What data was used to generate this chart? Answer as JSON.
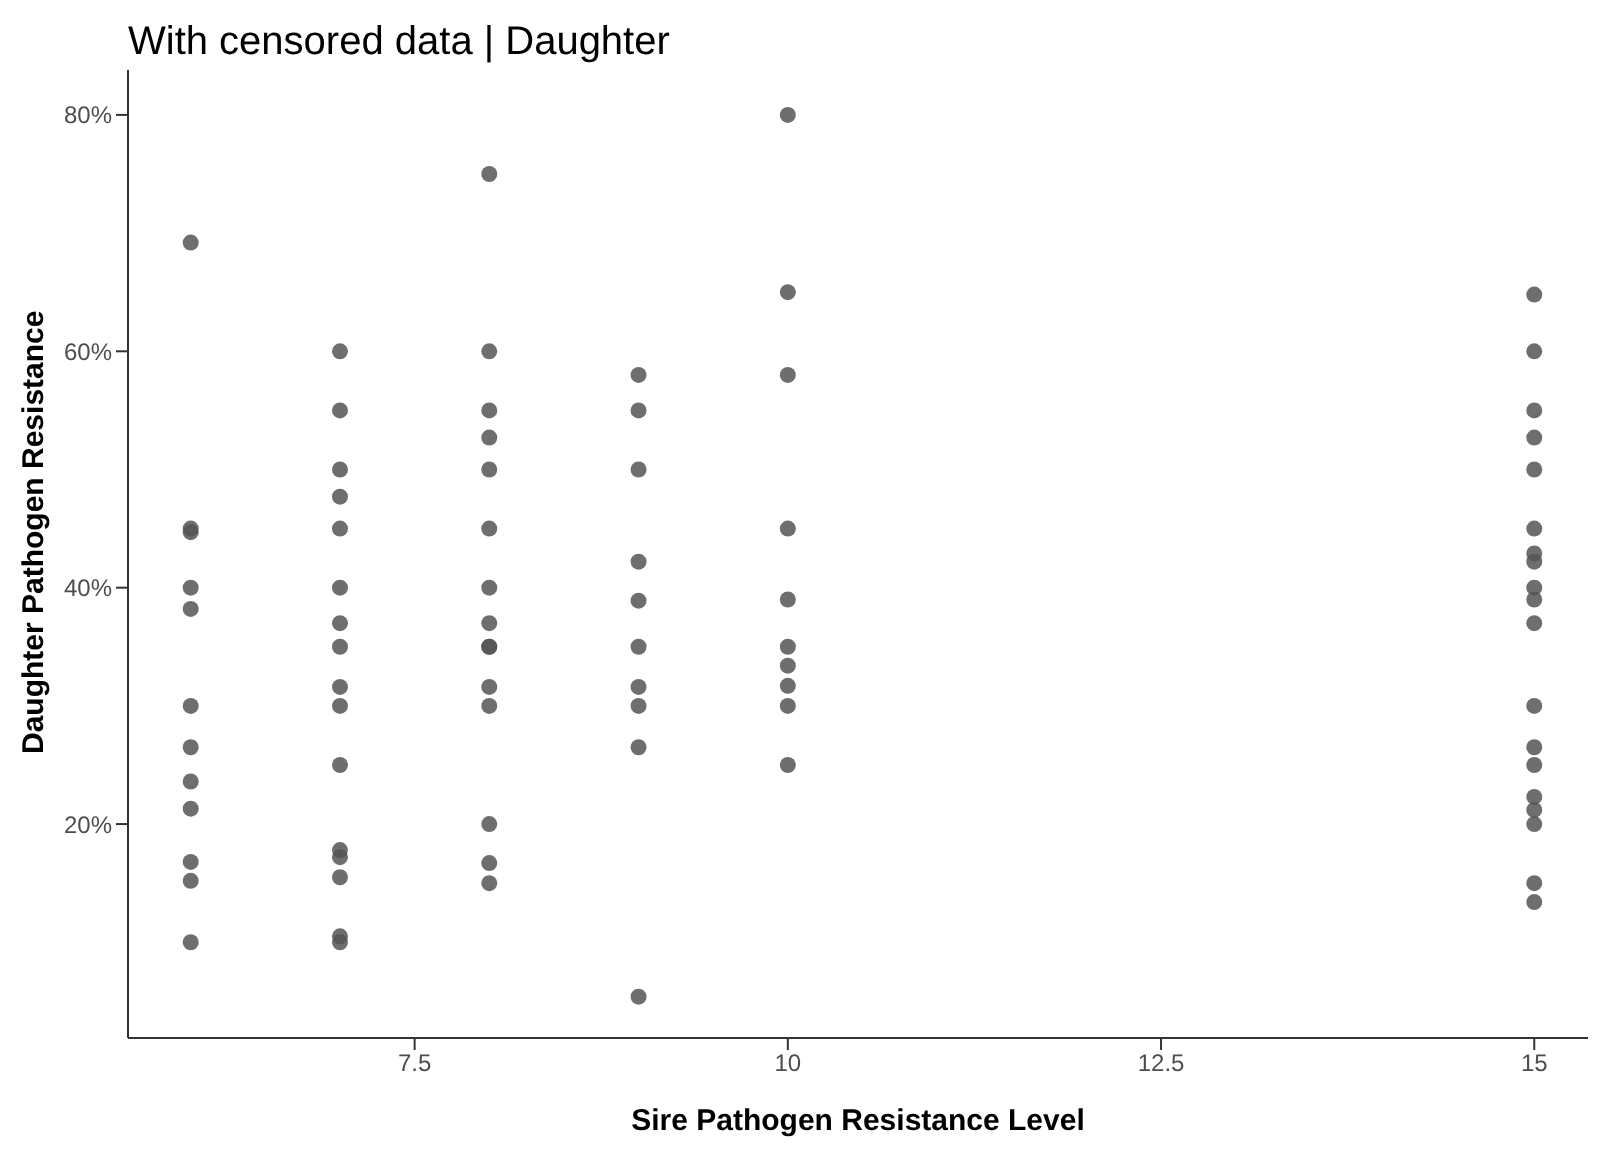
{
  "chart_data": {
    "type": "scatter",
    "title": "With censored data | Daughter",
    "xlabel": "Sire Pathogen Resistance Level",
    "ylabel": "Daughter Pathogen Resistance",
    "x": [
      6,
      6,
      6,
      6,
      6,
      6,
      6,
      6,
      6,
      6,
      6,
      6,
      7,
      7,
      7,
      7,
      7,
      7,
      7,
      7,
      7,
      7,
      7,
      7,
      7,
      7,
      7,
      7,
      8,
      8,
      8,
      8,
      8,
      8,
      8,
      8,
      8,
      8,
      8,
      8,
      8,
      8,
      8,
      9,
      9,
      9,
      9,
      9,
      9,
      9,
      9,
      9,
      9,
      10,
      10,
      10,
      10,
      10,
      10,
      10,
      10,
      10,
      10,
      15,
      15,
      15,
      15,
      15,
      15,
      15,
      15,
      15,
      15,
      15,
      15,
      15,
      15,
      15,
      15,
      15,
      15,
      15
    ],
    "values": [
      69.2,
      45,
      44.7,
      40,
      38.2,
      30,
      26.5,
      23.6,
      21.3,
      16.8,
      15.2,
      10,
      60,
      55,
      50,
      47.7,
      45,
      40,
      37,
      35,
      31.6,
      30,
      25,
      17.8,
      17.2,
      15.5,
      10.5,
      10,
      75,
      60,
      55,
      52.7,
      50,
      45,
      40,
      37,
      35,
      31.6,
      30,
      20,
      16.7,
      15,
      35,
      58,
      55,
      50,
      42.2,
      38.9,
      35,
      31.6,
      30,
      26.5,
      5.4,
      80,
      65,
      58,
      45,
      39,
      35,
      33.4,
      31.7,
      30,
      25,
      64.8,
      60,
      55,
      52.7,
      50,
      45,
      42.9,
      42.2,
      40,
      39,
      37,
      30,
      26.5,
      25,
      22.3,
      21.2,
      20,
      15,
      13.4
    ],
    "color": "#555555",
    "marker": "circle",
    "xlim": [
      5.58,
      15.36
    ],
    "xticks": [
      7.5,
      10,
      12.5,
      15
    ],
    "ylim": [
      1.9,
      83.8
    ],
    "yticks": [
      {
        "value": 20,
        "label": "20%"
      },
      {
        "value": 40,
        "label": "40%"
      },
      {
        "value": 60,
        "label": "60%"
      },
      {
        "value": 80,
        "label": "80%"
      }
    ],
    "grid": false,
    "legend": false
  }
}
